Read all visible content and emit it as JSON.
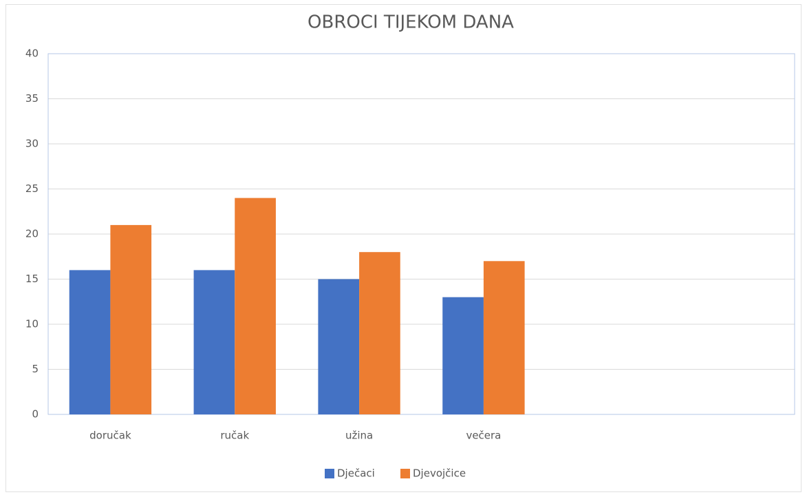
{
  "chart_data": {
    "type": "bar",
    "title": "OBROCI TIJEKOM DANA",
    "categories": [
      "doručak",
      "ručak",
      "užina",
      "večera",
      null,
      null
    ],
    "series": [
      {
        "name": "Dječaci",
        "color": "#4472c4",
        "values": [
          16,
          16,
          15,
          13,
          null,
          null
        ]
      },
      {
        "name": "Djevojčice",
        "color": "#ed7d31",
        "values": [
          21,
          24,
          18,
          17,
          null,
          null
        ]
      }
    ],
    "ylim": [
      0,
      40
    ],
    "yticks": [
      0,
      5,
      10,
      15,
      20,
      25,
      30,
      35,
      40
    ],
    "grid": true,
    "legend": "bottom"
  }
}
